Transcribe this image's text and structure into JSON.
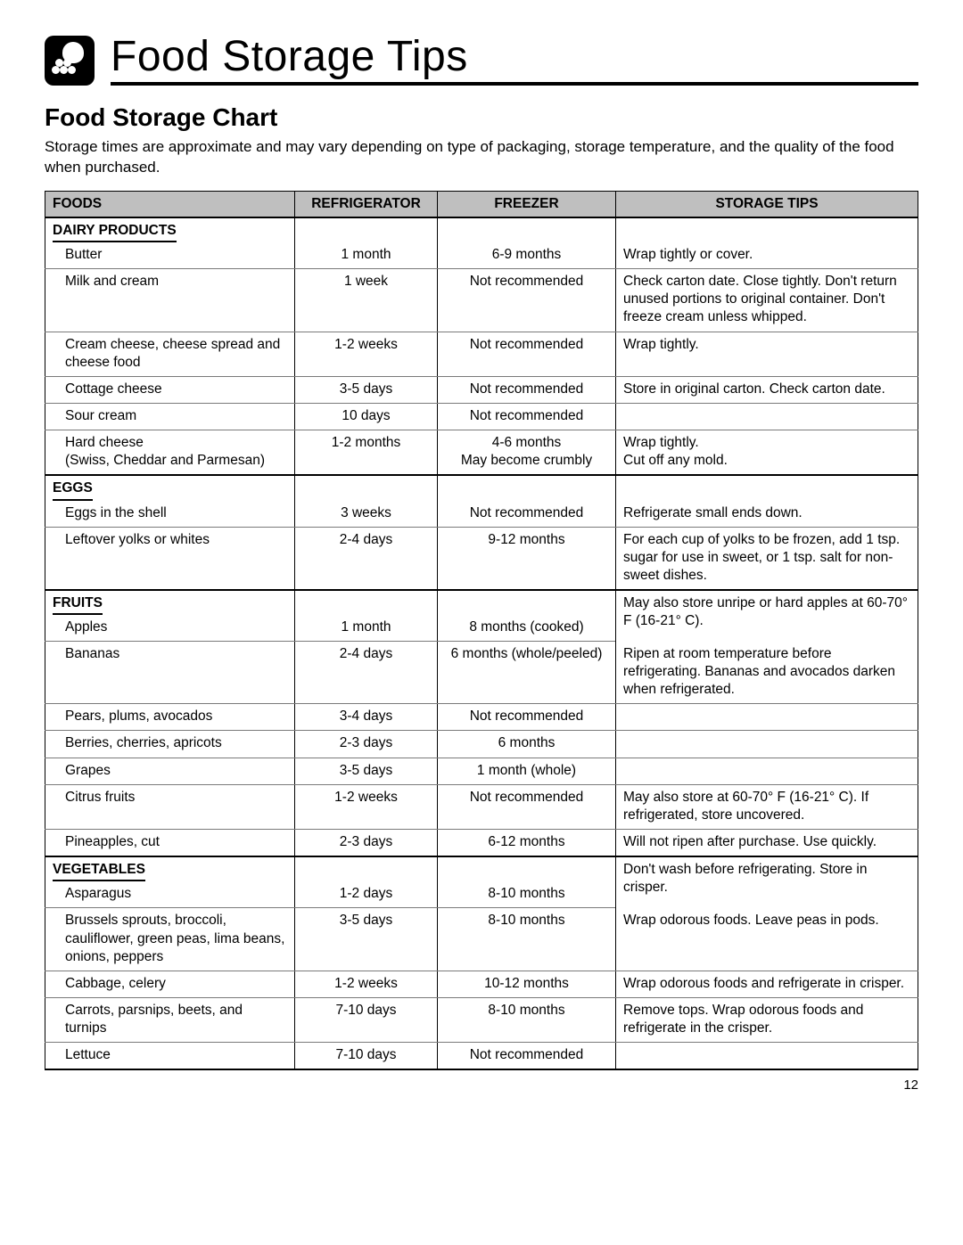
{
  "header": {
    "title": "Food Storage Tips"
  },
  "section": {
    "title": "Food Storage Chart",
    "intro": "Storage times are approximate and may vary depending on type of packaging, storage temperature, and the quality of the food when purchased."
  },
  "table": {
    "columns": [
      "FOODS",
      "REFRIGERATOR",
      "FREEZER",
      "STORAGE TIPS"
    ],
    "categories": [
      {
        "name": "DAIRY PRODUCTS",
        "rows": [
          {
            "food": "Butter",
            "ref": "1 month",
            "frz": "6-9 months",
            "tip": "Wrap tightly or cover."
          },
          {
            "food": "Milk and cream",
            "ref": "1 week",
            "frz": "Not recommended",
            "tip": "Check carton date. Close tightly. Don't return unused portions to original container. Don't freeze cream unless whipped."
          },
          {
            "food": "Cream cheese, cheese spread and cheese food",
            "ref": "1-2 weeks",
            "frz": "Not recommended",
            "tip": "Wrap tightly."
          },
          {
            "food": "Cottage cheese",
            "ref": "3-5 days",
            "frz": "Not recommended",
            "tip": "Store in original carton. Check carton date."
          },
          {
            "food": "Sour cream",
            "ref": "10 days",
            "frz": "Not recommended",
            "tip": ""
          },
          {
            "food": "Hard cheese\n(Swiss, Cheddar and Parmesan)",
            "ref": "1-2 months",
            "frz": "4-6 months\nMay become crumbly",
            "tip": "Wrap tightly.\nCut off any mold."
          }
        ]
      },
      {
        "name": "EGGS",
        "rows": [
          {
            "food": "Eggs in the shell",
            "ref": "3 weeks",
            "frz": "Not recommended",
            "tip": "Refrigerate small ends down."
          },
          {
            "food": "Leftover yolks or whites",
            "ref": "2-4 days",
            "frz": "9-12 months",
            "tip": "For each cup of yolks to be frozen, add 1 tsp. sugar for use in sweet, or 1 tsp. salt for non-sweet dishes."
          }
        ]
      },
      {
        "name": "FRUITS",
        "cat_tip": "May also store unripe or hard apples at 60-70° F (16-21° C).",
        "first_row_with_cat": {
          "food": "Apples",
          "ref": "1 month",
          "frz": "8 months (cooked)"
        },
        "rows": [
          {
            "food": "Bananas",
            "ref": "2-4 days",
            "frz": "6 months (whole/peeled)",
            "tip": "Ripen at room temperature before refrigerating. Bananas and avocados darken when refrigerated."
          },
          {
            "food": "Pears, plums, avocados",
            "ref": "3-4 days",
            "frz": "Not recommended",
            "tip": ""
          },
          {
            "food": "Berries, cherries, apricots",
            "ref": "2-3 days",
            "frz": "6 months",
            "tip": ""
          },
          {
            "food": "Grapes",
            "ref": "3-5 days",
            "frz": "1 month (whole)",
            "tip": ""
          },
          {
            "food": "Citrus fruits",
            "ref": "1-2 weeks",
            "frz": "Not recommended",
            "tip": "May also store at 60-70° F (16-21° C).  If refrigerated, store uncovered."
          },
          {
            "food": "Pineapples, cut",
            "ref": "2-3 days",
            "frz": "6-12 months",
            "tip": "Will not ripen after purchase. Use quickly."
          }
        ]
      },
      {
        "name": "VEGETABLES",
        "cat_tip": "Don't wash before refrigerating. Store in crisper.",
        "first_row_with_cat": {
          "food": "Asparagus",
          "ref": "1-2 days",
          "frz": "8-10 months"
        },
        "rows": [
          {
            "food": "Brussels sprouts, broccoli, cauliflower, green peas, lima beans, onions, peppers",
            "ref": "3-5 days",
            "frz": "8-10 months",
            "tip": "Wrap odorous foods. Leave peas in pods."
          },
          {
            "food": "Cabbage, celery",
            "ref": "1-2 weeks",
            "frz": "10-12 months",
            "tip": "Wrap odorous foods and refrigerate in crisper."
          },
          {
            "food": "Carrots, parsnips, beets, and turnips",
            "ref": "7-10 days",
            "frz": "8-10 months",
            "tip": "Remove tops. Wrap odorous foods and refrigerate in the crisper."
          },
          {
            "food": "Lettuce",
            "ref": "7-10 days",
            "frz": "Not recommended",
            "tip": ""
          }
        ]
      }
    ]
  },
  "page_number": "12"
}
